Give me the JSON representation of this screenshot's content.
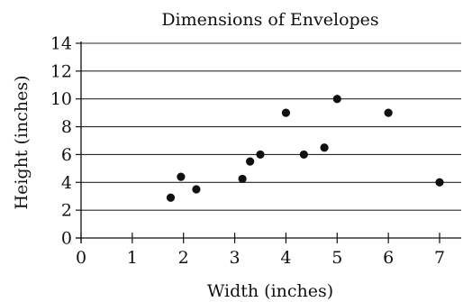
{
  "chart_data": {
    "type": "scatter",
    "title": "Dimensions of Envelopes",
    "xlabel": "Width (inches)",
    "ylabel": "Height (inches)",
    "xlim": [
      0,
      7
    ],
    "ylim": [
      0,
      14
    ],
    "x_ticks": [
      "0",
      "1",
      "2",
      "3",
      "4",
      "5",
      "6",
      "7"
    ],
    "y_ticks": [
      "0",
      "2",
      "4",
      "6",
      "8",
      "10",
      "12",
      "14"
    ],
    "grid": "horizontal",
    "legend": "none",
    "colors": {
      "point": "#111111",
      "grid": "#2a2a2a",
      "axis": "#111111"
    },
    "series": [
      {
        "points": [
          {
            "x": 1.75,
            "y": 2.9
          },
          {
            "x": 1.95,
            "y": 4.4
          },
          {
            "x": 2.25,
            "y": 3.5
          },
          {
            "x": 3.15,
            "y": 4.25
          },
          {
            "x": 3.3,
            "y": 5.5
          },
          {
            "x": 3.5,
            "y": 6.0
          },
          {
            "x": 4.0,
            "y": 9.0
          },
          {
            "x": 4.35,
            "y": 6.0
          },
          {
            "x": 4.75,
            "y": 6.5
          },
          {
            "x": 5.0,
            "y": 10.0
          },
          {
            "x": 6.0,
            "y": 9.0
          },
          {
            "x": 7.0,
            "y": 4.0
          }
        ]
      }
    ]
  }
}
